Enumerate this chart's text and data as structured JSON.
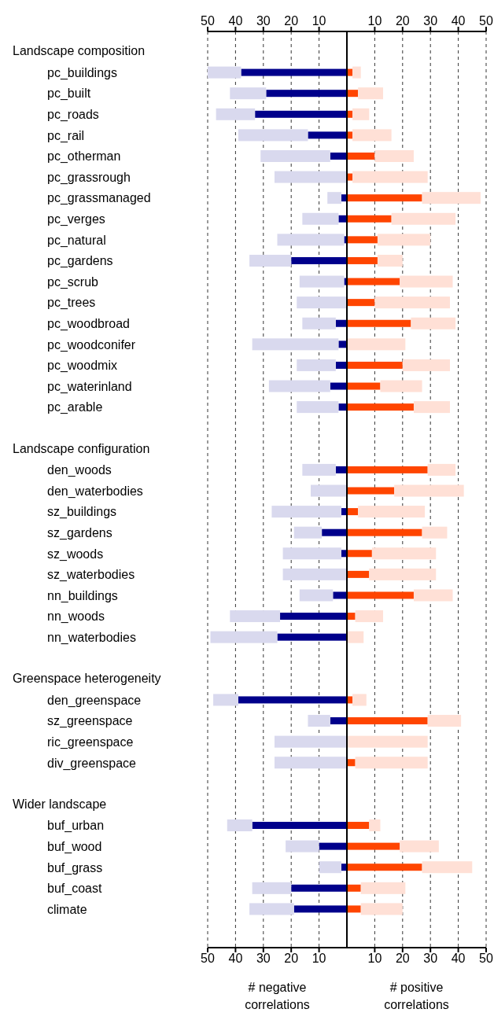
{
  "chart_data": {
    "type": "bar",
    "orientation": "horizontal",
    "categories": [
      null,
      "pc_buildings",
      "pc_built",
      "pc_roads",
      "pc_rail",
      "pc_otherman",
      "pc_grassrough",
      "pc_grassmanaged",
      "pc_verges",
      "pc_natural",
      "pc_gardens",
      "pc_scrub",
      "pc_trees",
      "pc_woodbroad",
      "pc_woodconifer",
      "pc_woodmix",
      "pc_waterinland",
      "pc_arable",
      null,
      null,
      "den_woods",
      "den_waterbodies",
      "sz_buildings",
      "sz_gardens",
      "sz_woods",
      "sz_waterbodies",
      "nn_buildings",
      "nn_woods",
      "nn_waterbodies",
      null,
      null,
      "den_greenspace",
      "sz_greenspace",
      "ric_greenspace",
      "div_greenspace",
      null,
      null,
      "buf_urban",
      "buf_wood",
      "buf_grass",
      "buf_coast",
      "climate"
    ],
    "series": [
      {
        "color": "#00008b",
        "values": [
          null,
          -38,
          -29,
          -33,
          -14,
          -6,
          0,
          -2,
          -3,
          -1,
          -20,
          -1,
          0,
          -4,
          -3,
          -4,
          -6,
          -3,
          null,
          null,
          -4,
          0,
          -2,
          -9,
          -2,
          0,
          -5,
          -24,
          -25,
          null,
          null,
          -39,
          -6,
          0,
          0,
          null,
          null,
          -34,
          -10,
          -2,
          -20,
          -19
        ]
      },
      {
        "color": "#d9d9ee",
        "values": [
          null,
          -12,
          -13,
          -14,
          -25,
          -25,
          -26,
          -5,
          -13,
          -24,
          -15,
          -16,
          -18,
          -12,
          -31,
          -14,
          -22,
          -15,
          null,
          null,
          -12,
          -13,
          -25,
          -10,
          -21,
          -23,
          -12,
          -18,
          -24,
          null,
          null,
          -9,
          -8,
          -26,
          -26,
          null,
          null,
          -9,
          -12,
          -8,
          -14,
          -16
        ]
      },
      {
        "color": "#ff4500",
        "values": [
          null,
          2,
          4,
          2,
          2,
          10,
          2,
          27,
          16,
          11,
          11,
          19,
          10,
          23,
          0,
          20,
          12,
          24,
          null,
          null,
          29,
          17,
          4,
          27,
          9,
          8,
          24,
          3,
          0,
          null,
          null,
          2,
          29,
          0,
          3,
          null,
          null,
          8,
          19,
          27,
          5,
          5
        ]
      },
      {
        "color": "#ffe0d6",
        "values": [
          null,
          3,
          9,
          6,
          14,
          14,
          27,
          21,
          23,
          19,
          9,
          19,
          27,
          16,
          21,
          17,
          15,
          13,
          null,
          null,
          10,
          25,
          24,
          9,
          23,
          24,
          14,
          10,
          6,
          null,
          null,
          5,
          12,
          29,
          26,
          null,
          null,
          4,
          14,
          18,
          16,
          15
        ]
      }
    ],
    "stacked": true,
    "xlim": [
      -50,
      50
    ],
    "xticks": [
      {
        "value": -50,
        "label": "50"
      },
      {
        "value": -40,
        "label": "40"
      },
      {
        "value": -30,
        "label": "30"
      },
      {
        "value": -20,
        "label": "20"
      },
      {
        "value": -10,
        "label": "10"
      },
      10,
      20,
      30,
      40,
      50
    ],
    "x2lim": [
      -50,
      50
    ],
    "x2ticks": [
      {
        "value": -50,
        "label": "50"
      },
      {
        "value": -40,
        "label": "40"
      },
      {
        "value": -30,
        "label": "30"
      },
      {
        "value": -20,
        "label": "20"
      },
      {
        "value": -10,
        "label": "10"
      },
      10,
      20,
      30,
      40,
      50
    ],
    "grid": "x",
    "ref_lines": [
      {
        "axis": "x",
        "value": 0,
        "color": "#000000",
        "line_style": "solid"
      }
    ],
    "annotations": [
      "Landscape composition",
      "Landscape configuration",
      "Greenspace heterogeneity",
      "Wider landscape",
      "# negative\ncorrelations",
      "# positive\ncorrelations"
    ]
  }
}
